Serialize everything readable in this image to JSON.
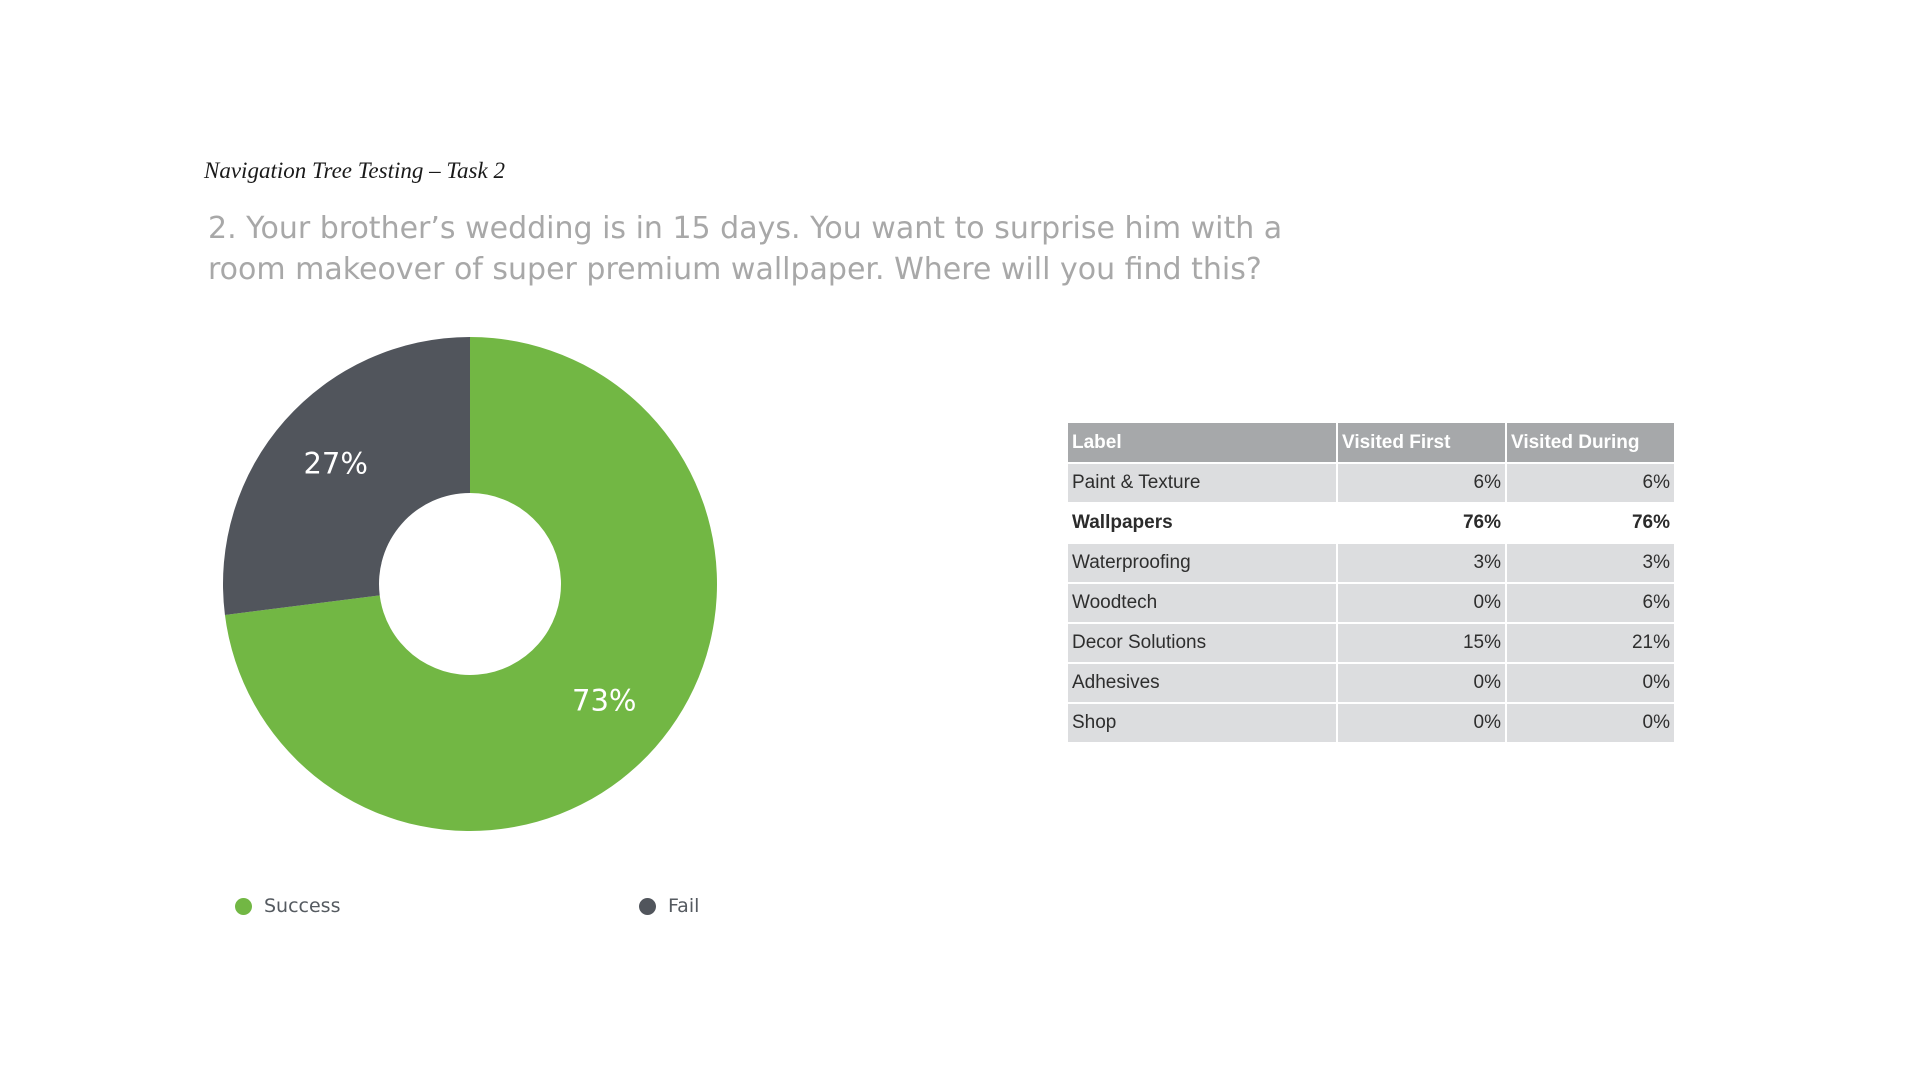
{
  "slide_title": "Navigation Tree Testing – Task 2",
  "question": {
    "line1": "2. Your brother’s wedding is in 15 days. You want to surprise him with a",
    "line2": "room makeover of super premium wallpaper. Where will you find this?"
  },
  "chart_data": [
    {
      "type": "pie",
      "donut": true,
      "categories": [
        "Success",
        "Fail"
      ],
      "values": [
        73,
        27
      ],
      "data_labels": [
        "73%",
        "27%"
      ],
      "colors": [
        "#72b744",
        "#51555c"
      ],
      "legend": "bottom"
    },
    {
      "type": "table",
      "columns": [
        "Label",
        "Visited First",
        "Visited During"
      ],
      "rows": [
        {
          "label": "Paint & Texture",
          "visited_first": "6%",
          "visited_during": "6%",
          "highlight": false
        },
        {
          "label": "Wallpapers",
          "visited_first": "76%",
          "visited_during": "76%",
          "highlight": true
        },
        {
          "label": "Waterproofing",
          "visited_first": "3%",
          "visited_during": "3%",
          "highlight": false
        },
        {
          "label": "Woodtech",
          "visited_first": "0%",
          "visited_during": "6%",
          "highlight": false
        },
        {
          "label": "Decor Solutions",
          "visited_first": "15%",
          "visited_during": "21%",
          "highlight": false
        },
        {
          "label": "Adhesives",
          "visited_first": "0%",
          "visited_during": "0%",
          "highlight": false
        },
        {
          "label": "Shop",
          "visited_first": "0%",
          "visited_during": "0%",
          "highlight": false
        }
      ],
      "colors": {
        "header_bg": "#a6a8aa",
        "row_bg": "#dcdddf",
        "highlight_bg": "#ffffff"
      }
    }
  ]
}
